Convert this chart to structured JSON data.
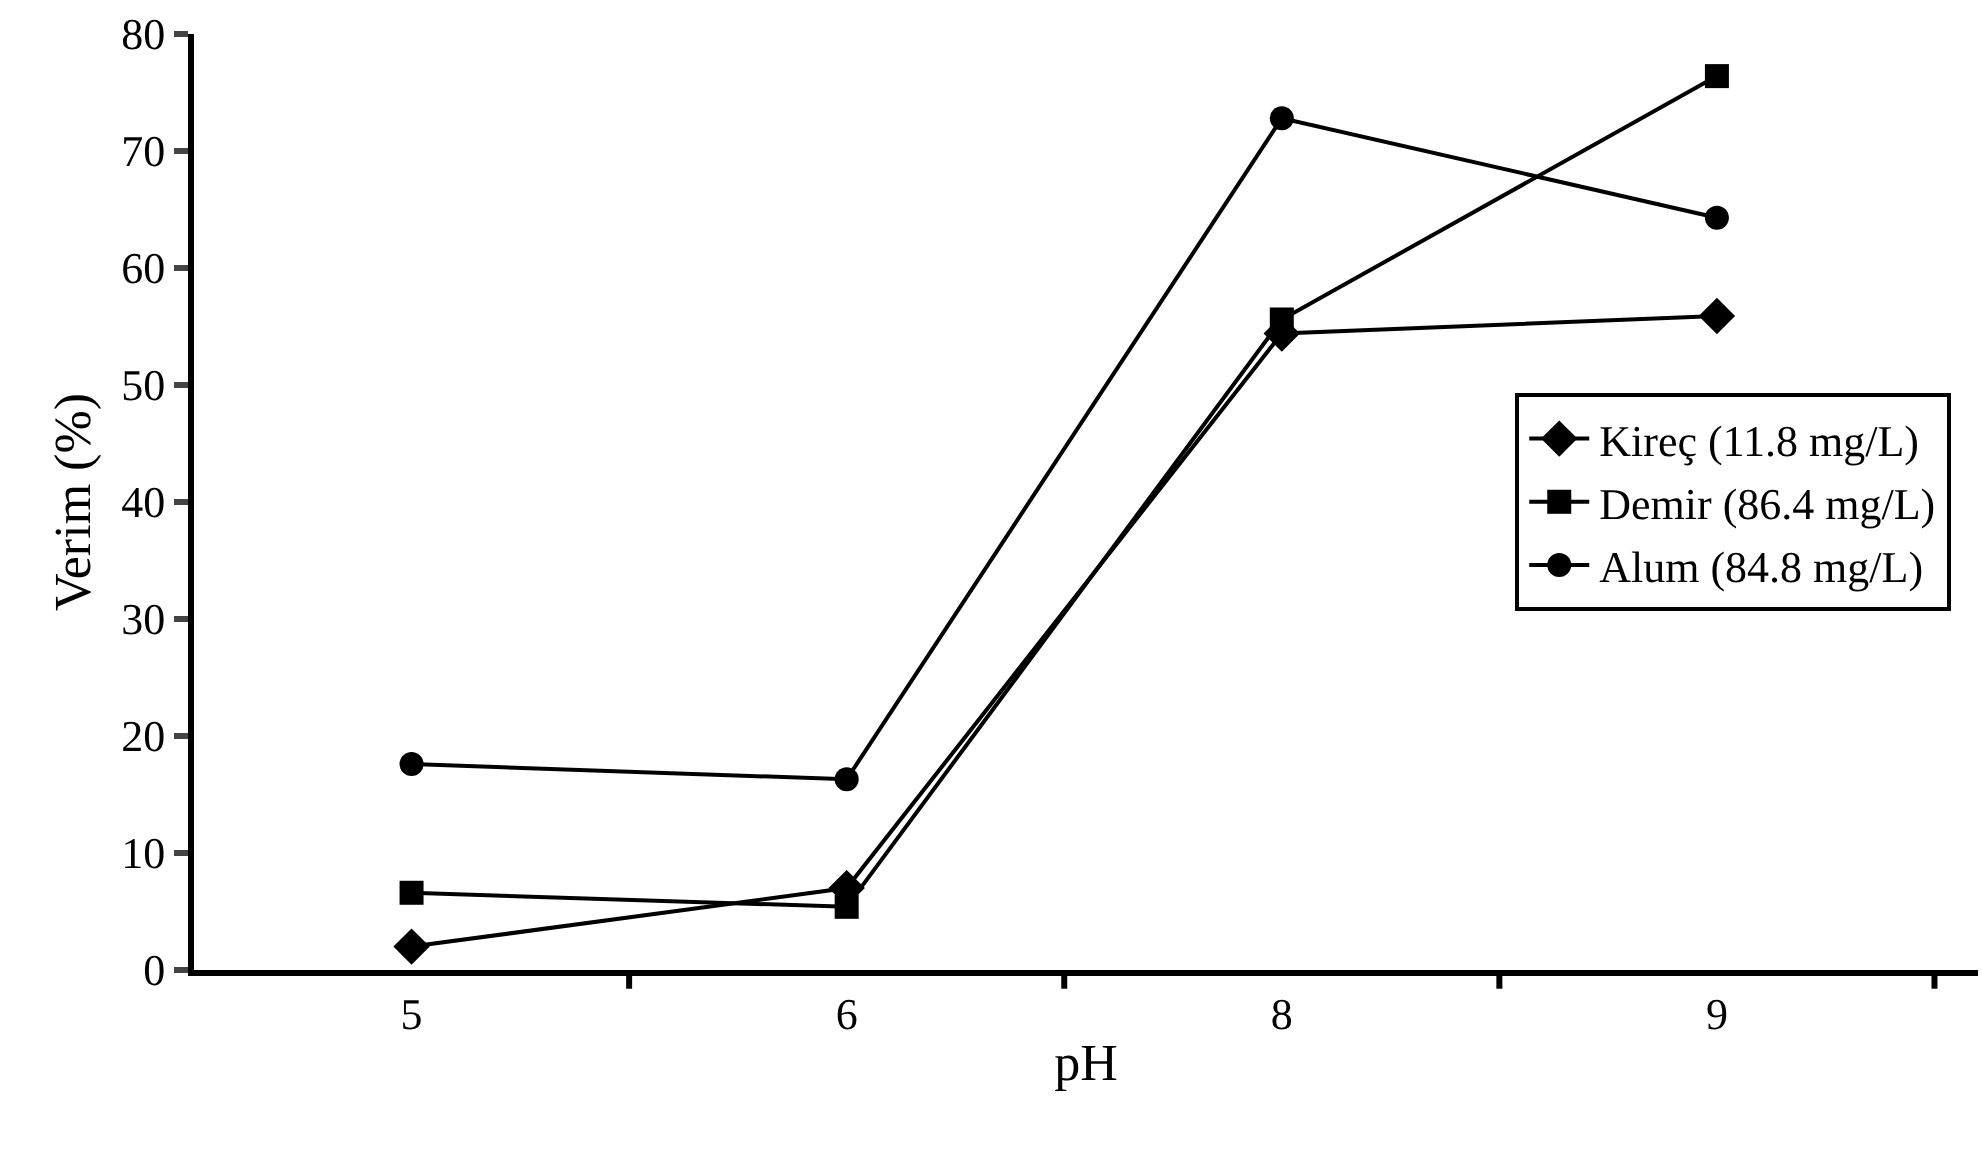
{
  "chart_data": {
    "type": "line",
    "xlabel": "pH",
    "ylabel": "Verim (%)",
    "categories": [
      "5",
      "6",
      "8",
      "9"
    ],
    "series": [
      {
        "name": "Kireç (11.8 mg/L)",
        "color": "#000000",
        "marker": "diamond",
        "values": [
          2,
          7,
          54.4,
          55.9
        ]
      },
      {
        "name": "Demir (86.4 mg/L)",
        "color": "#000000",
        "marker": "square",
        "values": [
          6.6,
          5.4,
          55.6,
          76.4
        ]
      },
      {
        "name": "Alum (84.8 mg/L)",
        "color": "#000000",
        "marker": "circle",
        "values": [
          17.6,
          16.3,
          72.8,
          64.3
        ]
      }
    ],
    "ylim": [
      0,
      80
    ],
    "yticks": [
      0,
      10,
      20,
      30,
      40,
      50,
      60,
      70,
      80
    ],
    "grid": false,
    "legend": "right",
    "line_style": "solid"
  }
}
